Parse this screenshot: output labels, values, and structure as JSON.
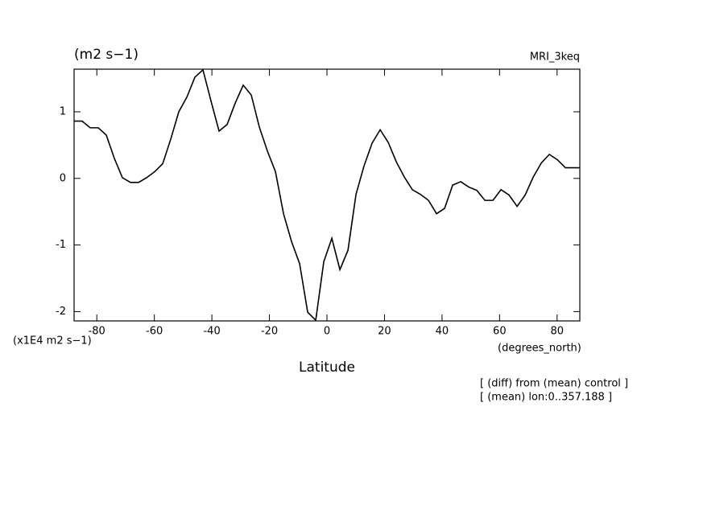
{
  "chart_data": {
    "type": "line",
    "title": "(m2 s−1)",
    "subtitle": "MRI_3keq",
    "y_unit_label": "(x1E4 m2 s−1)",
    "x_unit_label": "(degrees_north)",
    "xlabel": "Latitude",
    "annotations": [
      "[ (diff) from (mean) control ]",
      "[ (mean) lon:0..357.188 ]"
    ],
    "x": [
      -87.9,
      -85.1,
      -82.3,
      -79.5,
      -76.7,
      -73.9,
      -71.1,
      -68.3,
      -65.5,
      -62.7,
      -59.9,
      -57.1,
      -54.3,
      -51.5,
      -48.7,
      -45.9,
      -43.1,
      -40.3,
      -37.5,
      -34.7,
      -31.9,
      -29.1,
      -26.3,
      -23.5,
      -20.7,
      -17.9,
      -15.1,
      -12.3,
      -9.5,
      -6.7,
      -3.9,
      -1.1,
      1.7,
      4.5,
      7.3,
      10.1,
      12.9,
      15.7,
      18.5,
      21.3,
      24.1,
      26.9,
      29.7,
      32.5,
      35.3,
      38.1,
      40.9,
      43.7,
      46.5,
      49.3,
      52.1,
      54.9,
      57.7,
      60.5,
      63.3,
      66.1,
      68.9,
      71.7,
      74.5,
      77.3,
      80.1,
      82.9,
      85.7,
      87.9
    ],
    "series": [
      {
        "color": "#000000",
        "values": [
          0.86,
          0.86,
          0.76,
          0.76,
          0.65,
          0.3,
          0.01,
          -0.06,
          -0.06,
          0.01,
          0.1,
          0.22,
          0.59,
          1.0,
          1.22,
          1.52,
          1.63,
          1.16,
          0.71,
          0.81,
          1.13,
          1.4,
          1.25,
          0.77,
          0.41,
          0.1,
          -0.53,
          -0.95,
          -1.28,
          -2.01,
          -2.13,
          -1.25,
          -0.9,
          -1.37,
          -1.08,
          -0.24,
          0.19,
          0.53,
          0.73,
          0.54,
          0.25,
          0.02,
          -0.17,
          -0.24,
          -0.33,
          -0.53,
          -0.45,
          -0.1,
          -0.05,
          -0.13,
          -0.18,
          -0.33,
          -0.33,
          -0.17,
          -0.25,
          -0.42,
          -0.25,
          0.02,
          0.23,
          0.36,
          0.28,
          0.16,
          0.16,
          0.16
        ]
      }
    ],
    "xlim": [
      -87.9,
      87.9
    ],
    "ylim": [
      -2.14,
      1.64
    ],
    "xticks": [
      -80,
      -60,
      -40,
      -20,
      0,
      20,
      40,
      60,
      80
    ],
    "yticks": [
      -2,
      -1,
      0,
      1
    ],
    "grid": false
  }
}
